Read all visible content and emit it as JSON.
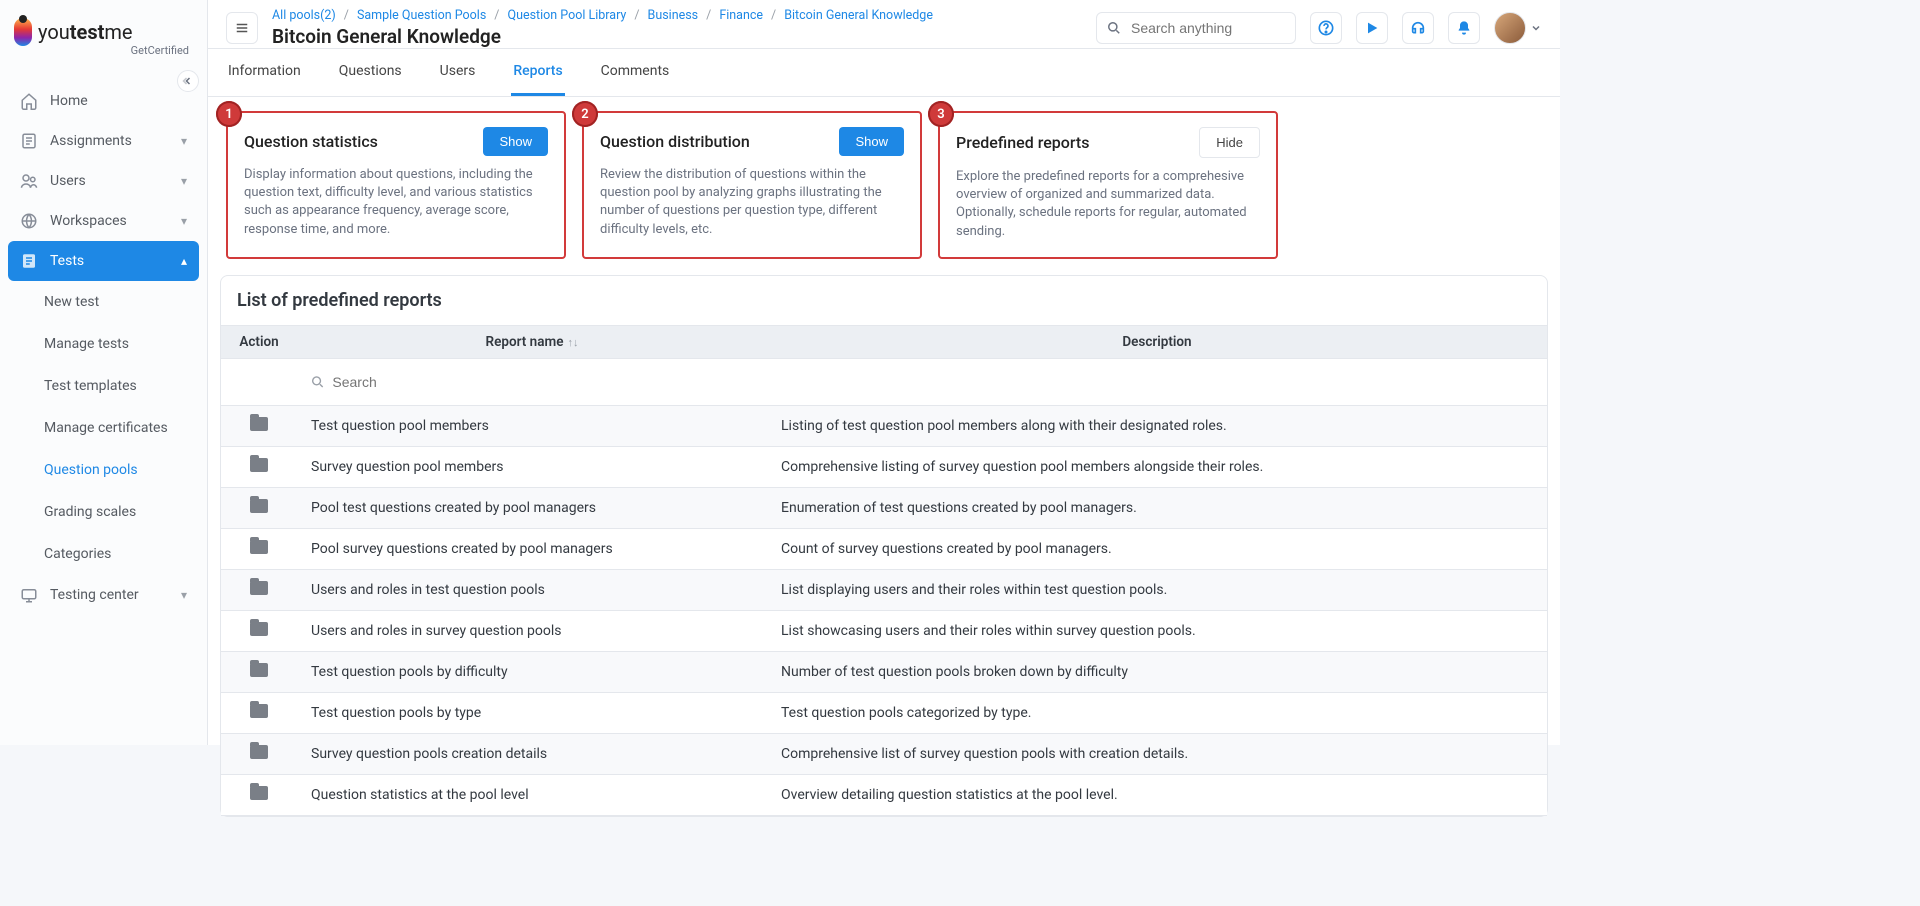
{
  "brand": {
    "name_pre": "you",
    "name_bold": "test",
    "name_post": "me",
    "sub": "GetCertified"
  },
  "breadcrumbs": [
    {
      "label": "All pools(2)",
      "link": true
    },
    {
      "label": "Sample Question Pools",
      "link": true
    },
    {
      "label": "Question Pool Library",
      "link": true
    },
    {
      "label": "Business",
      "link": true
    },
    {
      "label": "Finance",
      "link": true
    },
    {
      "label": "Bitcoin General Knowledge",
      "link": true
    }
  ],
  "page_title": "Bitcoin General Knowledge",
  "search": {
    "placeholder": "Search anything"
  },
  "sidebar": {
    "items": [
      {
        "icon": "home",
        "label": "Home",
        "expandable": false
      },
      {
        "icon": "assignments",
        "label": "Assignments",
        "expandable": true
      },
      {
        "icon": "users",
        "label": "Users",
        "expandable": true
      },
      {
        "icon": "workspaces",
        "label": "Workspaces",
        "expandable": true
      },
      {
        "icon": "tests",
        "label": "Tests",
        "expandable": true,
        "active": true,
        "open": true
      },
      {
        "icon": "testing-center",
        "label": "Testing center",
        "expandable": true
      }
    ],
    "tests_sub": [
      {
        "label": "New test"
      },
      {
        "label": "Manage tests"
      },
      {
        "label": "Test templates"
      },
      {
        "label": "Manage certificates"
      },
      {
        "label": "Question pools",
        "active": true
      },
      {
        "label": "Grading scales"
      },
      {
        "label": "Categories"
      }
    ]
  },
  "tabs": [
    {
      "label": "Information"
    },
    {
      "label": "Questions"
    },
    {
      "label": "Users"
    },
    {
      "label": "Reports",
      "active": true
    },
    {
      "label": "Comments"
    }
  ],
  "cards": {
    "stats": {
      "badge": "1",
      "title": "Question statistics",
      "button": "Show",
      "desc": "Display information about questions, including the question text, difficulty level, and various statistics such as appearance frequency, average score, response time, and more."
    },
    "dist": {
      "badge": "2",
      "title": "Question distribution",
      "button": "Show",
      "desc": "Review the distribution of questions within the question pool by analyzing graphs illustrating the number of questions per question type, different difficulty levels, etc."
    },
    "pred": {
      "badge": "3",
      "title": "Predefined reports",
      "button": "Hide",
      "desc": "Explore the predefined reports for a comprehesive overview of organized and summarized data. Optionally, schedule reports for regular, automated sending."
    }
  },
  "table": {
    "heading": "List of predefined reports",
    "cols": {
      "action": "Action",
      "name": "Report name",
      "desc": "Description"
    },
    "search_placeholder": "Search",
    "rows": [
      {
        "name": "Test question pool members",
        "desc": "Listing of test question pool members along with their designated roles."
      },
      {
        "name": "Survey question pool members",
        "desc": "Comprehensive listing of survey question pool members alongside their roles."
      },
      {
        "name": "Pool test questions created by pool managers",
        "desc": "Enumeration of test questions created by pool managers."
      },
      {
        "name": "Pool survey questions created by pool managers",
        "desc": "Count of survey questions created by pool managers."
      },
      {
        "name": "Users and roles in test question pools",
        "desc": "List displaying users and their roles within test question pools."
      },
      {
        "name": "Users and roles in survey question pools",
        "desc": "List showcasing users and their roles within survey question pools."
      },
      {
        "name": "Test question pools by difficulty",
        "desc": "Number of test question pools broken down by difficulty"
      },
      {
        "name": "Test question pools by type",
        "desc": "Test question pools categorized by type."
      },
      {
        "name": "Survey question pools creation details",
        "desc": "Comprehensive list of survey question pools with creation details."
      },
      {
        "name": "Question statistics at the pool level",
        "desc": "Overview detailing question statistics at the pool level."
      }
    ]
  },
  "style": {
    "highlight_border": "#d23a3a",
    "blue": "#1e88e5"
  }
}
